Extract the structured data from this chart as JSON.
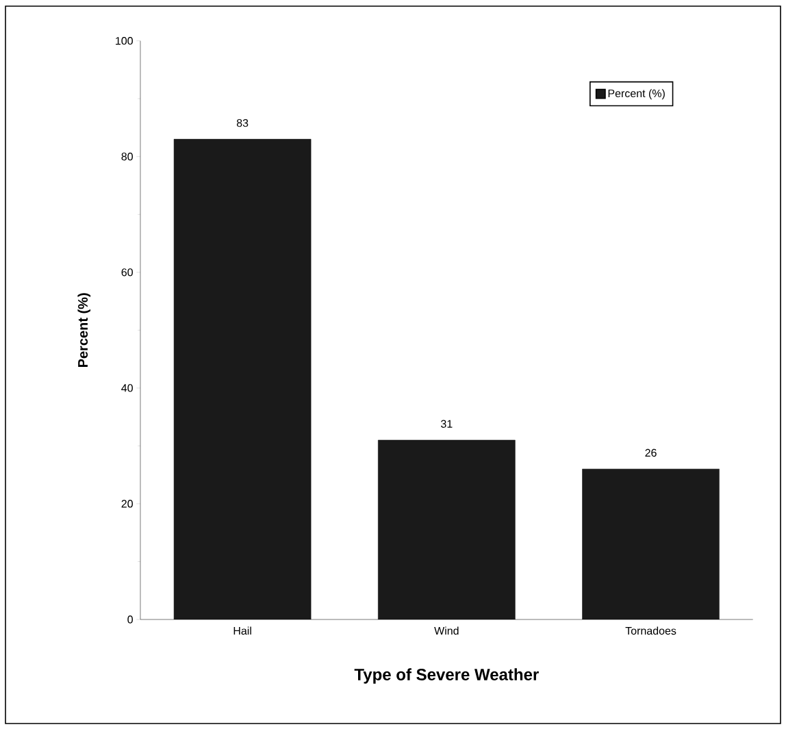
{
  "chart_data": {
    "type": "bar",
    "xlabel": "Type of Severe Weather",
    "ylabel": "Percent (%)",
    "categories": [
      "Hail",
      "Wind",
      "Tornadoes"
    ],
    "series": [
      {
        "name": "Percent (%)",
        "color": "#1a1a1a",
        "values": [
          83,
          31,
          26
        ]
      }
    ],
    "ylim": [
      0,
      100
    ],
    "yticks": [
      0,
      20,
      40,
      60,
      80,
      100
    ],
    "data_labels": true,
    "legend": "top right",
    "grid": false
  }
}
